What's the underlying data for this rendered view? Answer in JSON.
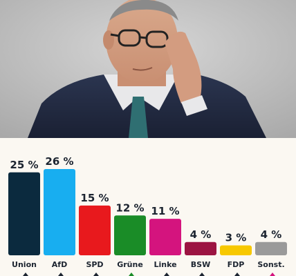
{
  "photo": {
    "description_icon": "portrait-photo"
  },
  "chart_data": {
    "type": "bar",
    "categories": [
      "Union",
      "AfD",
      "SPD",
      "Grüne",
      "Linke",
      "BSW",
      "FDP",
      "Sonst."
    ],
    "values": [
      25,
      26,
      15,
      12,
      11,
      4,
      3,
      4
    ],
    "value_labels": [
      "25 %",
      "26 %",
      "15 %",
      "12 %",
      "11 %",
      "4 %",
      "3 %",
      "4 %"
    ],
    "colors": [
      "#0b2a3e",
      "#18aef0",
      "#e8191d",
      "#1a8c27",
      "#d4147e",
      "#9c1442",
      "#f7c800",
      "#9a9a9a"
    ],
    "change_colors": [
      "#1c2430",
      "#1c2430",
      "#1c2430",
      "#1a8c27",
      "#1c2430",
      "#1c2430",
      "#1c2430",
      "#d4147e"
    ],
    "ylim": [
      0,
      26
    ],
    "title": "",
    "xlabel": "",
    "ylabel": ""
  }
}
